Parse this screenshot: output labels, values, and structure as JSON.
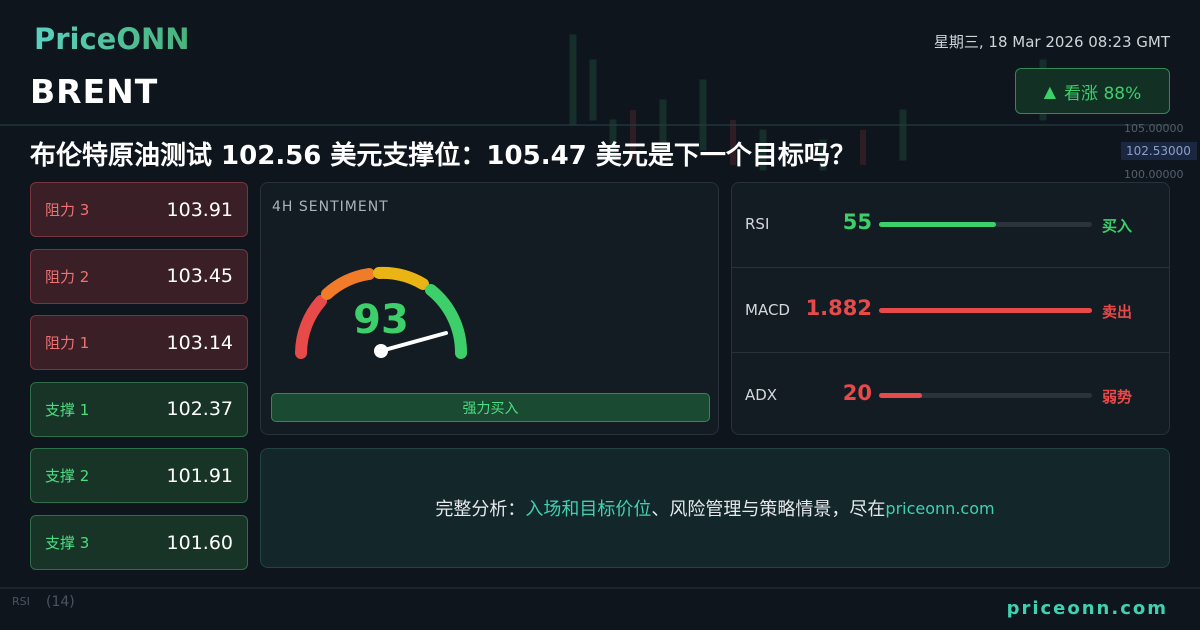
{
  "header": {
    "logo": "PriceONN",
    "date": "星期三, 18 Mar 2026 08:23 GMT",
    "symbol": "BRENT",
    "badge": "看涨 88%"
  },
  "headline": "布伦特原油测试 102.56 美元支撑位：105.47 美元是下一个目标吗？",
  "levels": [
    {
      "label": "阻力 3",
      "value": "103.91",
      "kind": "resistance"
    },
    {
      "label": "阻力 2",
      "value": "103.45",
      "kind": "resistance"
    },
    {
      "label": "阻力 1",
      "value": "103.14",
      "kind": "resistance"
    },
    {
      "label": "支撑 1",
      "value": "102.37",
      "kind": "support"
    },
    {
      "label": "支撑 2",
      "value": "101.91",
      "kind": "support"
    },
    {
      "label": "支撑 3",
      "value": "101.60",
      "kind": "support"
    }
  ],
  "sentiment": {
    "title": "4H SENTIMENT",
    "score": "93",
    "signal": "强力买入"
  },
  "indicators": [
    {
      "name": "RSI",
      "value": "55",
      "signal": "买入",
      "tone": "buy"
    },
    {
      "name": "MACD",
      "value": "1.882",
      "signal": "卖出",
      "tone": "sell"
    },
    {
      "name": "ADX",
      "value": "20",
      "signal": "弱势",
      "tone": "sell"
    }
  ],
  "footer": {
    "segments": [
      "完整分析：",
      "入场和目标价位",
      "、风险管理与策略情景，尽在 ",
      "priceonn.com"
    ],
    "site": "priceonn.com"
  },
  "background": {
    "price_labels": [
      "105.00000",
      "102.53000",
      "100.00000"
    ],
    "rsi_label": "RSI",
    "rsi_period": "(14)"
  }
}
